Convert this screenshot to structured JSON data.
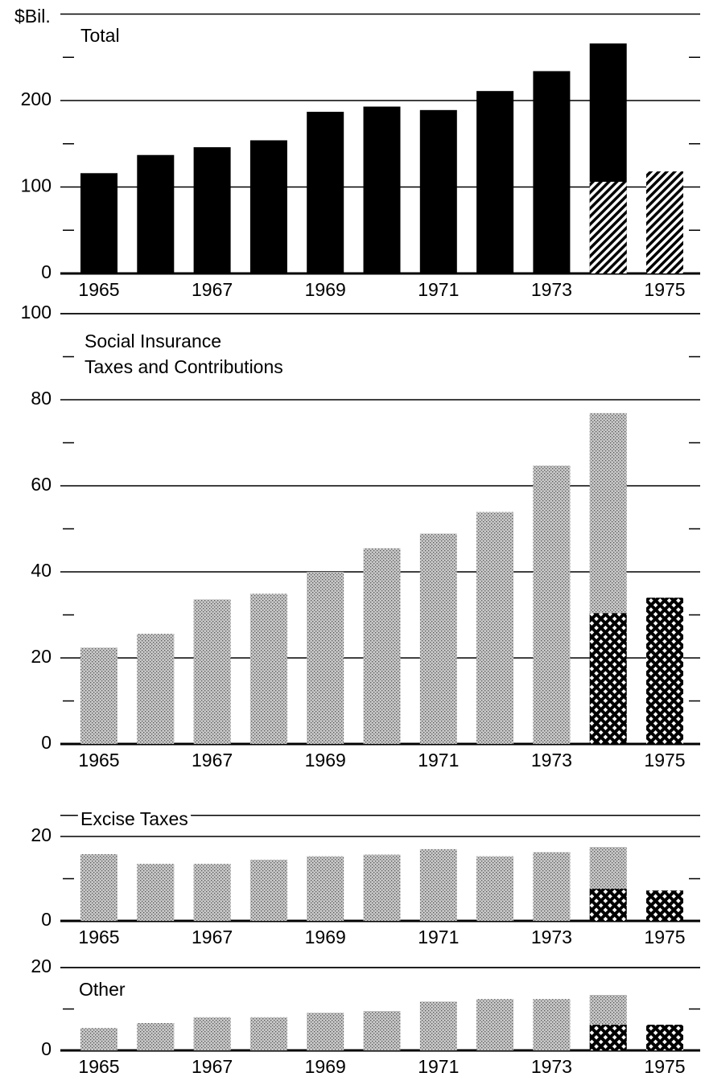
{
  "chart_data": [
    {
      "type": "bar",
      "title": [
        "Total"
      ],
      "ylabel": "$Bil.",
      "categories": [
        "1965",
        null,
        "1967",
        null,
        "1969",
        null,
        "1971",
        null,
        "1973",
        null,
        "1975"
      ],
      "series": [
        {
          "color": "#000000",
          "pattern": "solid",
          "values": [
            116,
            137,
            146,
            154,
            187,
            193,
            189,
            211,
            234,
            266,
            null
          ]
        },
        {
          "color": "#000000",
          "pattern": "hatch",
          "values": [
            null,
            null,
            null,
            null,
            null,
            null,
            null,
            null,
            null,
            106,
            118
          ]
        }
      ],
      "ylim": [
        0,
        300
      ],
      "yticks": [
        0,
        100,
        200
      ],
      "yminorticks": [
        50,
        150,
        250
      ],
      "grid": true
    },
    {
      "type": "bar",
      "title": [
        "Social Insurance",
        "Taxes and Contributions"
      ],
      "categories": [
        "1965",
        null,
        "1967",
        null,
        "1969",
        null,
        "1971",
        null,
        "1973",
        null,
        "1975"
      ],
      "series": [
        {
          "color": "#b8b8b8",
          "pattern": "stipple",
          "values": [
            22.4,
            25.6,
            33.6,
            34.9,
            40,
            45.5,
            48.9,
            53.9,
            64.7,
            76.9,
            null
          ]
        },
        {
          "color": "#000000",
          "pattern": "crosshatch",
          "values": [
            null,
            null,
            null,
            null,
            null,
            null,
            null,
            null,
            null,
            30.4,
            34
          ]
        }
      ],
      "ylim": [
        0,
        100
      ],
      "yticks": [
        0,
        20,
        40,
        60,
        80,
        100
      ],
      "yminorticks": [
        10,
        30,
        50,
        70,
        90
      ],
      "grid": true
    },
    {
      "type": "bar",
      "title": [
        "Excise Taxes"
      ],
      "categories": [
        "1965",
        null,
        "1967",
        null,
        "1969",
        null,
        "1971",
        null,
        "1973",
        null,
        "1975"
      ],
      "series": [
        {
          "color": "#b8b8b8",
          "pattern": "stipple",
          "values": [
            15.8,
            13.5,
            13.5,
            14.5,
            15.3,
            15.7,
            17,
            15.3,
            16.3,
            17.5,
            null
          ]
        },
        {
          "color": "#000000",
          "pattern": "crosshatch",
          "values": [
            null,
            null,
            null,
            null,
            null,
            null,
            null,
            null,
            null,
            7.6,
            7.2
          ]
        }
      ],
      "ylim": [
        0,
        25
      ],
      "yticks": [
        0,
        20
      ],
      "yminorticks": [
        10
      ],
      "grid": true
    },
    {
      "type": "bar",
      "title": [
        "Other"
      ],
      "categories": [
        "1965",
        null,
        "1967",
        null,
        "1969",
        null,
        "1971",
        null,
        "1973",
        null,
        "1975"
      ],
      "series": [
        {
          "color": "#b8b8b8",
          "pattern": "stipple",
          "values": [
            5.4,
            6.6,
            8,
            8,
            9.1,
            9.5,
            11.8,
            12.4,
            12.4,
            13.4,
            null
          ]
        },
        {
          "color": "#000000",
          "pattern": "crosshatch",
          "values": [
            null,
            null,
            null,
            null,
            null,
            null,
            null,
            null,
            null,
            6.2,
            6.2
          ]
        }
      ],
      "ylim": [
        0,
        20
      ],
      "yticks": [
        0,
        20
      ],
      "yminorticks": [
        10
      ],
      "grid": true
    }
  ]
}
